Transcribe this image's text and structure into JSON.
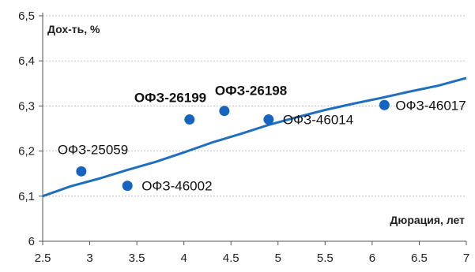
{
  "chart_data": {
    "type": "scatter",
    "title": "",
    "xlabel": "Дюрация, лет",
    "ylabel": "Дох-ть, %",
    "xlim": [
      2.5,
      7
    ],
    "ylim": [
      6.0,
      6.5
    ],
    "x_ticks": [
      2.5,
      3,
      3.5,
      4,
      4.5,
      5,
      5.5,
      6,
      6.5,
      7
    ],
    "x_tick_labels": [
      "2.5",
      "3",
      "3.5",
      "4",
      "4.5",
      "5",
      "5.5",
      "6",
      "6.5",
      "7"
    ],
    "y_ticks": [
      6.0,
      6.1,
      6.2,
      6.3,
      6.4,
      6.5
    ],
    "y_tick_labels": [
      "6",
      "6,1",
      "6,2",
      "6,3",
      "6,4",
      "6,5"
    ],
    "grid": {
      "horizontal": true,
      "vertical": false
    },
    "colors": {
      "points": "#1565C0",
      "curve": "#1E6FBF",
      "grid": "#C0C0C0",
      "text": "#222222"
    },
    "points": [
      {
        "label": "ОФЗ-25059",
        "x": 2.91,
        "y": 6.155,
        "bold": false
      },
      {
        "label": "ОФЗ-46002",
        "x": 3.4,
        "y": 6.123,
        "bold": false
      },
      {
        "label": "ОФЗ-26199",
        "x": 4.06,
        "y": 6.27,
        "bold": true
      },
      {
        "label": "ОФЗ-26198",
        "x": 4.43,
        "y": 6.289,
        "bold": true
      },
      {
        "label": "ОФЗ-46014",
        "x": 4.9,
        "y": 6.27,
        "bold": false
      },
      {
        "label": "ОФЗ-46017",
        "x": 6.13,
        "y": 6.302,
        "bold": false
      }
    ],
    "curve": {
      "x": [
        2.5,
        2.8,
        3.1,
        3.4,
        3.7,
        4.0,
        4.3,
        4.6,
        4.9,
        5.2,
        5.5,
        5.8,
        6.1,
        6.4,
        6.7,
        7.0
      ],
      "y": [
        6.1,
        6.122,
        6.139,
        6.158,
        6.176,
        6.197,
        6.219,
        6.238,
        6.258,
        6.275,
        6.291,
        6.305,
        6.318,
        6.332,
        6.345,
        6.362
      ]
    }
  }
}
